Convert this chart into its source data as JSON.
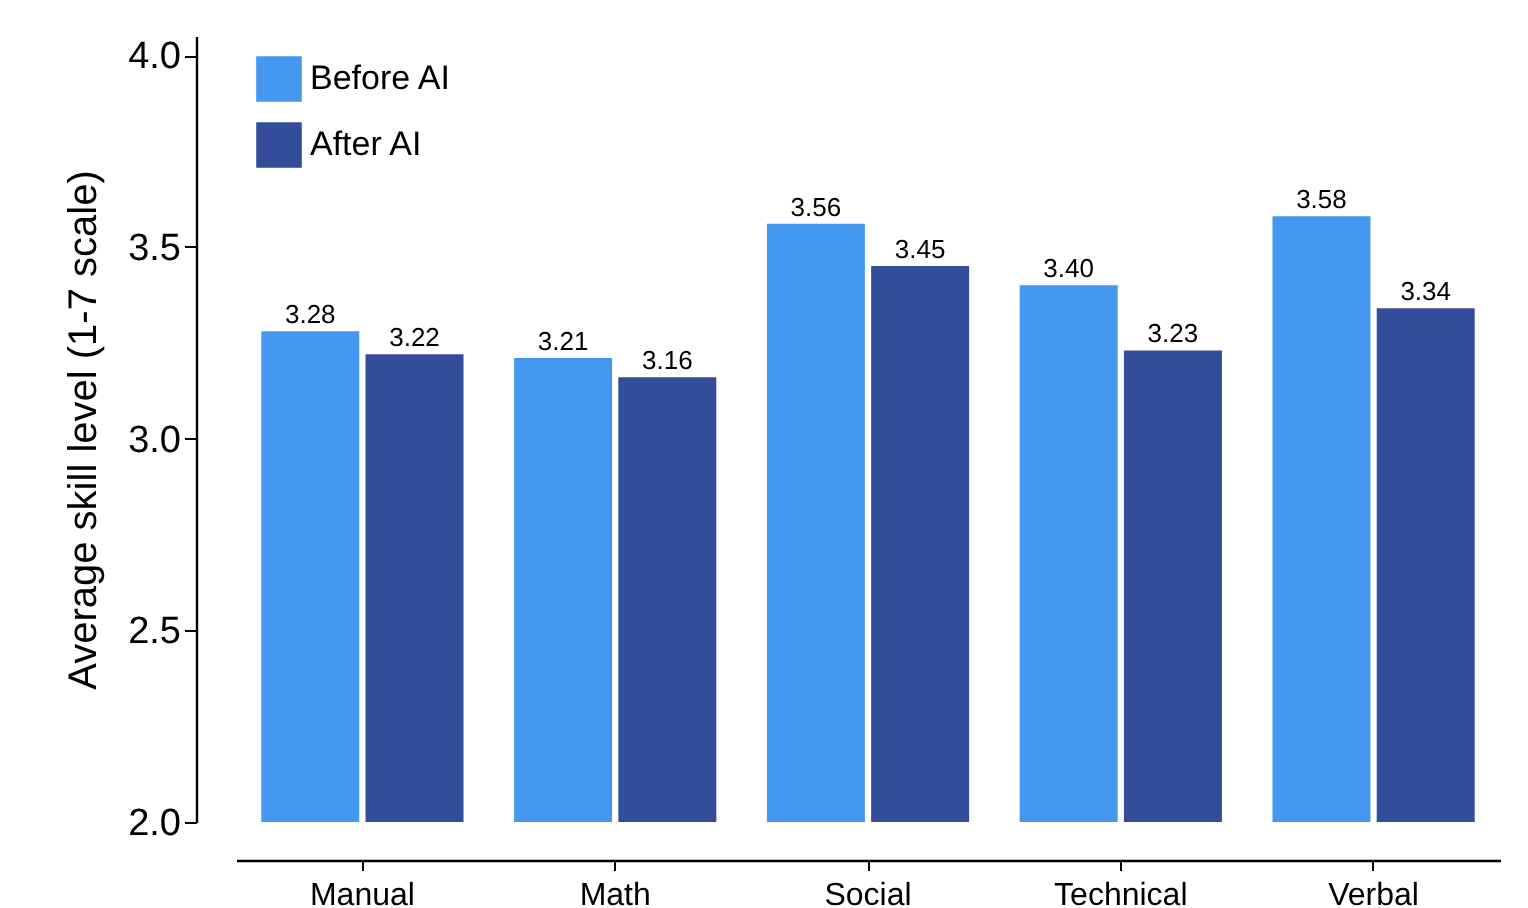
{
  "chart_data": {
    "type": "bar",
    "ylabel": "Average skill level (1-7 scale)",
    "categories": [
      "Manual",
      "Math",
      "Social",
      "Technical",
      "Verbal"
    ],
    "series": [
      {
        "name": "Before AI",
        "color": "#4598f0",
        "values": [
          3.28,
          3.21,
          3.56,
          3.4,
          3.58
        ],
        "value_labels": [
          "3.28",
          "3.21",
          "3.56",
          "3.40",
          "3.58"
        ]
      },
      {
        "name": "After AI",
        "color": "#344d9a",
        "values": [
          3.22,
          3.16,
          3.45,
          3.23,
          3.34
        ],
        "value_labels": [
          "3.22",
          "3.16",
          "3.45",
          "3.23",
          "3.34"
        ]
      }
    ],
    "ylim": [
      2,
      4.05
    ],
    "yticks": [
      {
        "value": 2,
        "label": "2.0"
      },
      2.5,
      {
        "value": 3,
        "label": "3.0"
      },
      3.5,
      {
        "value": 4,
        "label": "4.0"
      }
    ],
    "grid": false,
    "legend": "top left"
  }
}
